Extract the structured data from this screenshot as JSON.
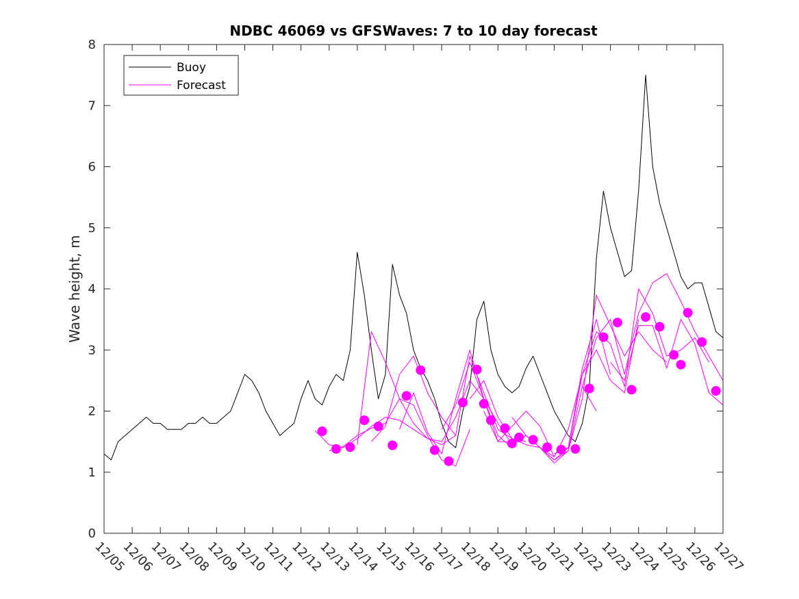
{
  "chart_data": {
    "type": "line",
    "title": "NDBC 46069 vs GFSWaves: 7 to 10 day forecast",
    "xlabel": "",
    "ylabel": "Wave height, m",
    "x_unit": "date (December)",
    "xlim": [
      "12/05",
      "12/27"
    ],
    "ylim": [
      0,
      8
    ],
    "x_ticks": [
      "12/05",
      "12/06",
      "12/07",
      "12/08",
      "12/09",
      "12/10",
      "12/11",
      "12/12",
      "12/13",
      "12/14",
      "12/15",
      "12/16",
      "12/17",
      "12/18",
      "12/19",
      "12/20",
      "12/21",
      "12/22",
      "12/23",
      "12/24",
      "12/25",
      "12/26",
      "12/27"
    ],
    "y_ticks": [
      0,
      1,
      2,
      3,
      4,
      5,
      6,
      7,
      8
    ],
    "grid": false,
    "legend": {
      "placement": "top-left",
      "entries": [
        "Buoy",
        "Forecast"
      ]
    },
    "colors": {
      "buoy": "#000000",
      "forecast": "#ff00ff",
      "axes": "#262626"
    },
    "series": [
      {
        "name": "Buoy",
        "color": "#000000",
        "x": [
          "12/05 00:00",
          "12/05 06:00",
          "12/05 12:00",
          "12/05 18:00",
          "12/06 00:00",
          "12/06 06:00",
          "12/06 12:00",
          "12/06 18:00",
          "12/07 00:00",
          "12/07 06:00",
          "12/07 12:00",
          "12/07 18:00",
          "12/08 00:00",
          "12/08 06:00",
          "12/08 12:00",
          "12/08 18:00",
          "12/09 00:00",
          "12/09 06:00",
          "12/09 12:00",
          "12/09 18:00",
          "12/10 00:00",
          "12/10 06:00",
          "12/10 12:00",
          "12/10 18:00",
          "12/11 00:00",
          "12/11 06:00",
          "12/11 12:00",
          "12/11 18:00",
          "12/12 00:00",
          "12/12 06:00",
          "12/12 12:00",
          "12/12 18:00",
          "12/13 00:00",
          "12/13 06:00",
          "12/13 12:00",
          "12/13 18:00",
          "12/14 00:00",
          "12/14 06:00",
          "12/14 12:00",
          "12/14 18:00",
          "12/15 00:00",
          "12/15 06:00",
          "12/15 12:00",
          "12/15 18:00",
          "12/16 00:00",
          "12/16 06:00",
          "12/16 12:00",
          "12/16 18:00",
          "12/17 00:00",
          "12/17 06:00",
          "12/17 12:00",
          "12/17 18:00",
          "12/18 00:00",
          "12/18 06:00",
          "12/18 12:00",
          "12/18 18:00",
          "12/19 00:00",
          "12/19 06:00",
          "12/19 12:00",
          "12/19 18:00",
          "12/20 00:00",
          "12/20 06:00",
          "12/20 12:00",
          "12/20 18:00",
          "12/21 00:00",
          "12/21 06:00",
          "12/21 12:00",
          "12/21 18:00",
          "12/22 00:00",
          "12/22 06:00",
          "12/22 12:00",
          "12/22 18:00",
          "12/23 00:00",
          "12/23 06:00",
          "12/23 12:00",
          "12/23 18:00",
          "12/24 00:00",
          "12/24 06:00",
          "12/24 12:00",
          "12/24 18:00",
          "12/25 00:00",
          "12/25 06:00",
          "12/25 12:00",
          "12/25 18:00",
          "12/26 00:00",
          "12/26 06:00",
          "12/26 12:00",
          "12/26 18:00",
          "12/27 00:00"
        ],
        "values": [
          1.3,
          1.2,
          1.5,
          1.6,
          1.7,
          1.8,
          1.9,
          1.8,
          1.8,
          1.7,
          1.7,
          1.7,
          1.8,
          1.8,
          1.9,
          1.8,
          1.8,
          1.9,
          2.0,
          2.3,
          2.6,
          2.5,
          2.3,
          2.0,
          1.8,
          1.6,
          1.7,
          1.8,
          2.2,
          2.5,
          2.2,
          2.1,
          2.4,
          2.6,
          2.5,
          3.0,
          4.6,
          3.9,
          3.0,
          2.2,
          2.6,
          4.4,
          3.9,
          3.6,
          3.0,
          2.7,
          2.5,
          2.2,
          1.8,
          1.5,
          1.4,
          2.0,
          2.4,
          3.5,
          3.8,
          3.0,
          2.6,
          2.4,
          2.3,
          2.4,
          2.7,
          2.9,
          2.6,
          2.3,
          2.0,
          1.8,
          1.6,
          1.5,
          1.8,
          2.4,
          4.5,
          5.6,
          5.0,
          4.6,
          4.2,
          4.3,
          5.6,
          7.5,
          6.0,
          5.4,
          5.0,
          4.6,
          4.2,
          4.0,
          4.1,
          4.1,
          3.7,
          3.3,
          3.2
        ]
      },
      {
        "name": "Forecast",
        "color": "#ff00ff",
        "note_runs": "overlapping forecast runs, one line each",
        "runs": [
          {
            "x": [
              "12/12 12:00",
              "12/13 00:00",
              "12/13 12:00",
              "12/14 00:00",
              "12/14 12:00",
              "12/15 00:00",
              "12/15 12:00",
              "12/16 00:00",
              "12/16 12:00",
              "12/17 00:00",
              "12/17 12:00"
            ],
            "values": [
              1.68,
              1.45,
              1.4,
              1.55,
              1.75,
              1.9,
              1.85,
              1.7,
              1.55,
              1.45,
              1.6
            ]
          },
          {
            "x": [
              "12/13 00:00",
              "12/13 12:00",
              "12/14 00:00",
              "12/14 12:00",
              "12/15 00:00",
              "12/15 12:00",
              "12/16 00:00",
              "12/16 12:00",
              "12/17 00:00",
              "12/17 12:00",
              "12/18 00:00"
            ],
            "values": [
              1.35,
              1.42,
              1.6,
              1.72,
              1.8,
              2.2,
              2.1,
              1.6,
              1.2,
              1.1,
              1.7
            ]
          },
          {
            "x": [
              "12/14 00:00",
              "12/14 12:00",
              "12/15 00:00",
              "12/15 12:00",
              "12/16 00:00",
              "12/16 12:00",
              "12/17 00:00",
              "12/17 12:00",
              "12/18 00:00",
              "12/18 12:00",
              "12/19 00:00",
              "12/19 12:00"
            ],
            "values": [
              1.45,
              3.3,
              2.8,
              2.2,
              1.8,
              1.55,
              1.5,
              1.9,
              2.5,
              2.2,
              1.6,
              1.4
            ]
          },
          {
            "x": [
              "12/14 12:00",
              "12/15 00:00",
              "12/15 12:00",
              "12/16 00:00",
              "12/16 12:00",
              "12/17 00:00",
              "12/17 12:00",
              "12/18 00:00",
              "12/18 12:00",
              "12/19 00:00",
              "12/19 12:00",
              "12/20 00:00"
            ],
            "values": [
              1.5,
              1.75,
              2.6,
              2.9,
              2.3,
              1.9,
              1.6,
              2.9,
              2.3,
              1.7,
              1.55,
              1.5
            ]
          },
          {
            "x": [
              "12/15 12:00",
              "12/16 00:00",
              "12/16 12:00",
              "12/17 00:00",
              "12/17 12:00",
              "12/18 00:00",
              "12/18 12:00",
              "12/19 00:00",
              "12/19 12:00",
              "12/20 00:00",
              "12/20 12:00",
              "12/21 00:00"
            ],
            "values": [
              1.7,
              2.3,
              1.65,
              1.3,
              2.2,
              3.0,
              2.2,
              1.5,
              1.5,
              1.6,
              1.4,
              1.25
            ]
          },
          {
            "x": [
              "12/17 00:00",
              "12/17 12:00",
              "12/18 00:00",
              "12/18 12:00",
              "12/19 00:00",
              "12/19 12:00",
              "12/20 00:00",
              "12/20 12:00",
              "12/21 00:00",
              "12/21 12:00",
              "12/22 00:00",
              "12/22 12:00"
            ],
            "values": [
              1.7,
              2.1,
              2.8,
              2.2,
              1.8,
              1.45,
              1.6,
              1.4,
              1.2,
              1.35,
              2.4,
              2.0
            ]
          },
          {
            "x": [
              "12/18 00:00",
              "12/18 12:00",
              "12/19 00:00",
              "12/19 12:00",
              "12/20 00:00",
              "12/20 12:00",
              "12/21 00:00",
              "12/21 12:00",
              "12/22 00:00",
              "12/22 12:00",
              "12/23 00:00"
            ],
            "values": [
              2.2,
              2.5,
              1.9,
              1.55,
              1.45,
              1.4,
              1.2,
              1.4,
              2.7,
              3.5,
              2.6
            ]
          },
          {
            "x": [
              "12/18 12:00",
              "12/19 00:00",
              "12/19 12:00",
              "12/20 00:00",
              "12/20 12:00",
              "12/21 00:00",
              "12/21 12:00",
              "12/22 00:00",
              "12/22 12:00",
              "12/23 00:00",
              "12/23 12:00",
              "12/24 00:00"
            ],
            "values": [
              2.0,
              1.5,
              1.75,
              2.0,
              1.75,
              1.25,
              1.7,
              2.6,
              3.0,
              2.5,
              2.3,
              3.5
            ]
          },
          {
            "x": [
              "12/19 12:00",
              "12/20 00:00",
              "12/20 12:00",
              "12/21 00:00",
              "12/21 12:00",
              "12/22 00:00",
              "12/22 12:00",
              "12/23 00:00",
              "12/23 12:00",
              "12/24 00:00",
              "12/24 12:00",
              "12/25 00:00"
            ],
            "values": [
              1.9,
              1.6,
              1.4,
              1.15,
              1.35,
              2.2,
              3.9,
              3.4,
              2.9,
              3.3,
              3.0,
              2.8
            ]
          },
          {
            "x": [
              "12/21 00:00",
              "12/21 12:00",
              "12/22 00:00",
              "12/22 12:00",
              "12/23 00:00",
              "12/23 12:00",
              "12/24 00:00",
              "12/24 12:00",
              "12/25 00:00",
              "12/25 12:00",
              "12/26 00:00",
              "12/26 12:00"
            ],
            "values": [
              1.3,
              1.4,
              2.6,
              3.3,
              3.1,
              2.4,
              4.0,
              3.6,
              2.9,
              3.0,
              3.2,
              2.8
            ]
          },
          {
            "x": [
              "12/22 00:00",
              "12/22 12:00",
              "12/23 00:00",
              "12/23 12:00",
              "12/24 00:00",
              "12/24 12:00",
              "12/25 00:00",
              "12/25 12:00",
              "12/26 00:00",
              "12/26 12:00",
              "12/27 00:00"
            ],
            "values": [
              2.4,
              3.2,
              3.5,
              2.6,
              3.6,
              4.1,
              4.25,
              3.8,
              3.3,
              2.9,
              2.5
            ]
          },
          {
            "x": [
              "12/23 00:00",
              "12/23 12:00",
              "12/24 00:00",
              "12/24 12:00",
              "12/25 00:00",
              "12/25 12:00",
              "12/26 00:00",
              "12/26 12:00",
              "12/27 00:00"
            ],
            "values": [
              2.8,
              2.5,
              3.4,
              3.4,
              2.7,
              3.5,
              3.1,
              2.3,
              2.1
            ]
          }
        ],
        "markers": {
          "x": [
            "12/12 18:00",
            "12/13 06:00",
            "12/13 18:00",
            "12/14 06:00",
            "12/14 18:00",
            "12/15 06:00",
            "12/15 18:00",
            "12/16 06:00",
            "12/16 18:00",
            "12/17 06:00",
            "12/17 18:00",
            "12/18 06:00",
            "12/18 12:00",
            "12/18 18:00",
            "12/19 06:00",
            "12/19 12:00",
            "12/19 18:00",
            "12/20 06:00",
            "12/20 18:00",
            "12/21 06:00",
            "12/21 18:00",
            "12/22 06:00",
            "12/22 18:00",
            "12/23 06:00",
            "12/23 18:00",
            "12/24 06:00",
            "12/24 18:00",
            "12/25 06:00",
            "12/25 12:00",
            "12/25 18:00",
            "12/26 06:00",
            "12/26 18:00"
          ],
          "values": [
            1.67,
            1.38,
            1.41,
            1.85,
            1.75,
            1.44,
            2.25,
            2.67,
            1.36,
            1.18,
            2.14,
            2.68,
            2.12,
            1.85,
            1.72,
            1.47,
            1.57,
            1.53,
            1.41,
            1.37,
            1.38,
            2.37,
            3.21,
            3.45,
            2.35,
            3.54,
            3.38,
            2.92,
            2.76,
            3.61,
            3.13,
            2.33
          ]
        }
      }
    ]
  }
}
